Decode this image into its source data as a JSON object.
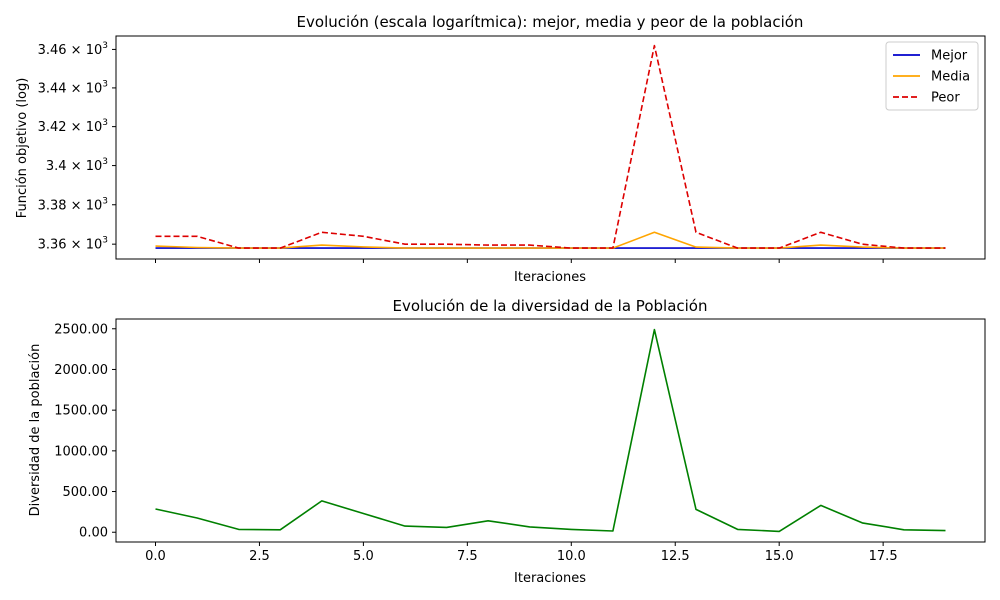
{
  "chart_data": [
    {
      "type": "line",
      "title": "Evolución (escala logarítmica): mejor, media y peor de la población",
      "xlabel": "Iteraciones",
      "ylabel": "Función objetivo (log)",
      "yscale": "log",
      "xlim": [
        -0.95,
        19.95
      ],
      "ylim": [
        3352.5,
        3467
      ],
      "x": [
        0,
        1,
        2,
        3,
        4,
        5,
        6,
        7,
        8,
        9,
        10,
        11,
        12,
        13,
        14,
        15,
        16,
        17,
        18,
        19
      ],
      "xtick_labels_visible": false,
      "yticks": [
        3360,
        3380,
        3400,
        3420,
        3440,
        3460
      ],
      "ytick_labels": [
        {
          "mantissa": "3.36",
          "base": "10",
          "exp": "3"
        },
        {
          "mantissa": "3.38",
          "base": "10",
          "exp": "3"
        },
        {
          "mantissa": "3.4",
          "base": "10",
          "exp": "3"
        },
        {
          "mantissa": "3.42",
          "base": "10",
          "exp": "3"
        },
        {
          "mantissa": "3.44",
          "base": "10",
          "exp": "3"
        },
        {
          "mantissa": "3.46",
          "base": "10",
          "exp": "3"
        }
      ],
      "grid": false,
      "legend": "top-right",
      "series": [
        {
          "name": "Mejor",
          "color": "#0000cc",
          "dash": "solid",
          "values": [
            3358,
            3358,
            3358,
            3358,
            3358,
            3358,
            3358,
            3358,
            3358,
            3358,
            3358,
            3358,
            3358,
            3358,
            3358,
            3358,
            3358,
            3358,
            3358,
            3358
          ]
        },
        {
          "name": "Media",
          "color": "#ffa500",
          "dash": "solid",
          "values": [
            3359,
            3358.3,
            3358,
            3358,
            3359.5,
            3358.6,
            3358,
            3358,
            3358,
            3358,
            3358,
            3358,
            3366,
            3358.5,
            3358,
            3358,
            3359.5,
            3358.5,
            3358,
            3358
          ]
        },
        {
          "name": "Peor",
          "color": "#dd0000",
          "dash": "dashed",
          "values": [
            3364,
            3364,
            3358,
            3358,
            3366,
            3364,
            3360,
            3360,
            3359.5,
            3359.5,
            3358,
            3358,
            3462,
            3366,
            3358,
            3358,
            3366,
            3360,
            3358,
            3358
          ]
        }
      ]
    },
    {
      "type": "line",
      "title": "Evolución de la diversidad de la Población",
      "xlabel": "Iteraciones",
      "ylabel": "Diversidad de la población",
      "xlim": [
        -0.95,
        19.95
      ],
      "ylim": [
        -120,
        2620
      ],
      "x": [
        0,
        1,
        2,
        3,
        4,
        5,
        6,
        7,
        8,
        9,
        10,
        11,
        12,
        13,
        14,
        15,
        16,
        17,
        18,
        19
      ],
      "xticks": [
        0,
        2.5,
        5,
        7.5,
        10,
        12.5,
        15,
        17.5
      ],
      "xtick_labels": [
        "0.0",
        "2.5",
        "5.0",
        "7.5",
        "10.0",
        "12.5",
        "15.0",
        "17.5"
      ],
      "yticks": [
        0,
        500,
        1000,
        1500,
        2000,
        2500
      ],
      "ytick_labels": [
        "0.00",
        "500.00",
        "1000.00",
        "1500.00",
        "2000.00",
        "2500.00"
      ],
      "grid": false,
      "series": [
        {
          "color": "#008000",
          "dash": "solid",
          "values": [
            285,
            175,
            35,
            30,
            385,
            230,
            75,
            60,
            140,
            65,
            35,
            15,
            2490,
            280,
            35,
            10,
            330,
            115,
            30,
            20
          ]
        }
      ]
    }
  ]
}
